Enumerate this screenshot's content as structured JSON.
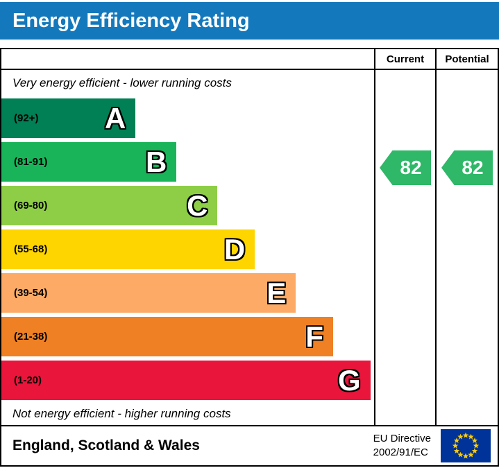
{
  "header": {
    "title": "Energy Efficiency Rating",
    "bg": "#1479bc"
  },
  "table": {
    "columns": {
      "current": "Current",
      "potential": "Potential"
    },
    "top_note": "Very energy efficient - lower running costs",
    "bottom_note": "Not energy efficient - higher running costs"
  },
  "chart_data": {
    "type": "bar",
    "title": "Energy Efficiency Rating",
    "bands": [
      {
        "letter": "A",
        "range": "(92+)",
        "min": 92,
        "max": 100,
        "color": "#008054",
        "width_pct": 36
      },
      {
        "letter": "B",
        "range": "(81-91)",
        "min": 81,
        "max": 91,
        "color": "#19b459",
        "width_pct": 47
      },
      {
        "letter": "C",
        "range": "(69-80)",
        "min": 69,
        "max": 80,
        "color": "#8dce46",
        "width_pct": 58
      },
      {
        "letter": "D",
        "range": "(55-68)",
        "min": 55,
        "max": 68,
        "color": "#ffd500",
        "width_pct": 68
      },
      {
        "letter": "E",
        "range": "(39-54)",
        "min": 39,
        "max": 54,
        "color": "#fcaa65",
        "width_pct": 79
      },
      {
        "letter": "F",
        "range": "(21-38)",
        "min": 21,
        "max": 38,
        "color": "#ef8023",
        "width_pct": 89
      },
      {
        "letter": "G",
        "range": "(1-20)",
        "min": 1,
        "max": 20,
        "color": "#e9153b",
        "width_pct": 99
      }
    ],
    "current": {
      "value": "82",
      "band": "B",
      "color": "#2eb867"
    },
    "potential": {
      "value": "82",
      "band": "B",
      "color": "#2eb867"
    }
  },
  "footer": {
    "region": "England, Scotland & Wales",
    "directive_line1": "EU Directive",
    "directive_line2": "2002/91/EC",
    "flag_colors": {
      "background": "#003399",
      "stars": "#ffcc00"
    }
  }
}
